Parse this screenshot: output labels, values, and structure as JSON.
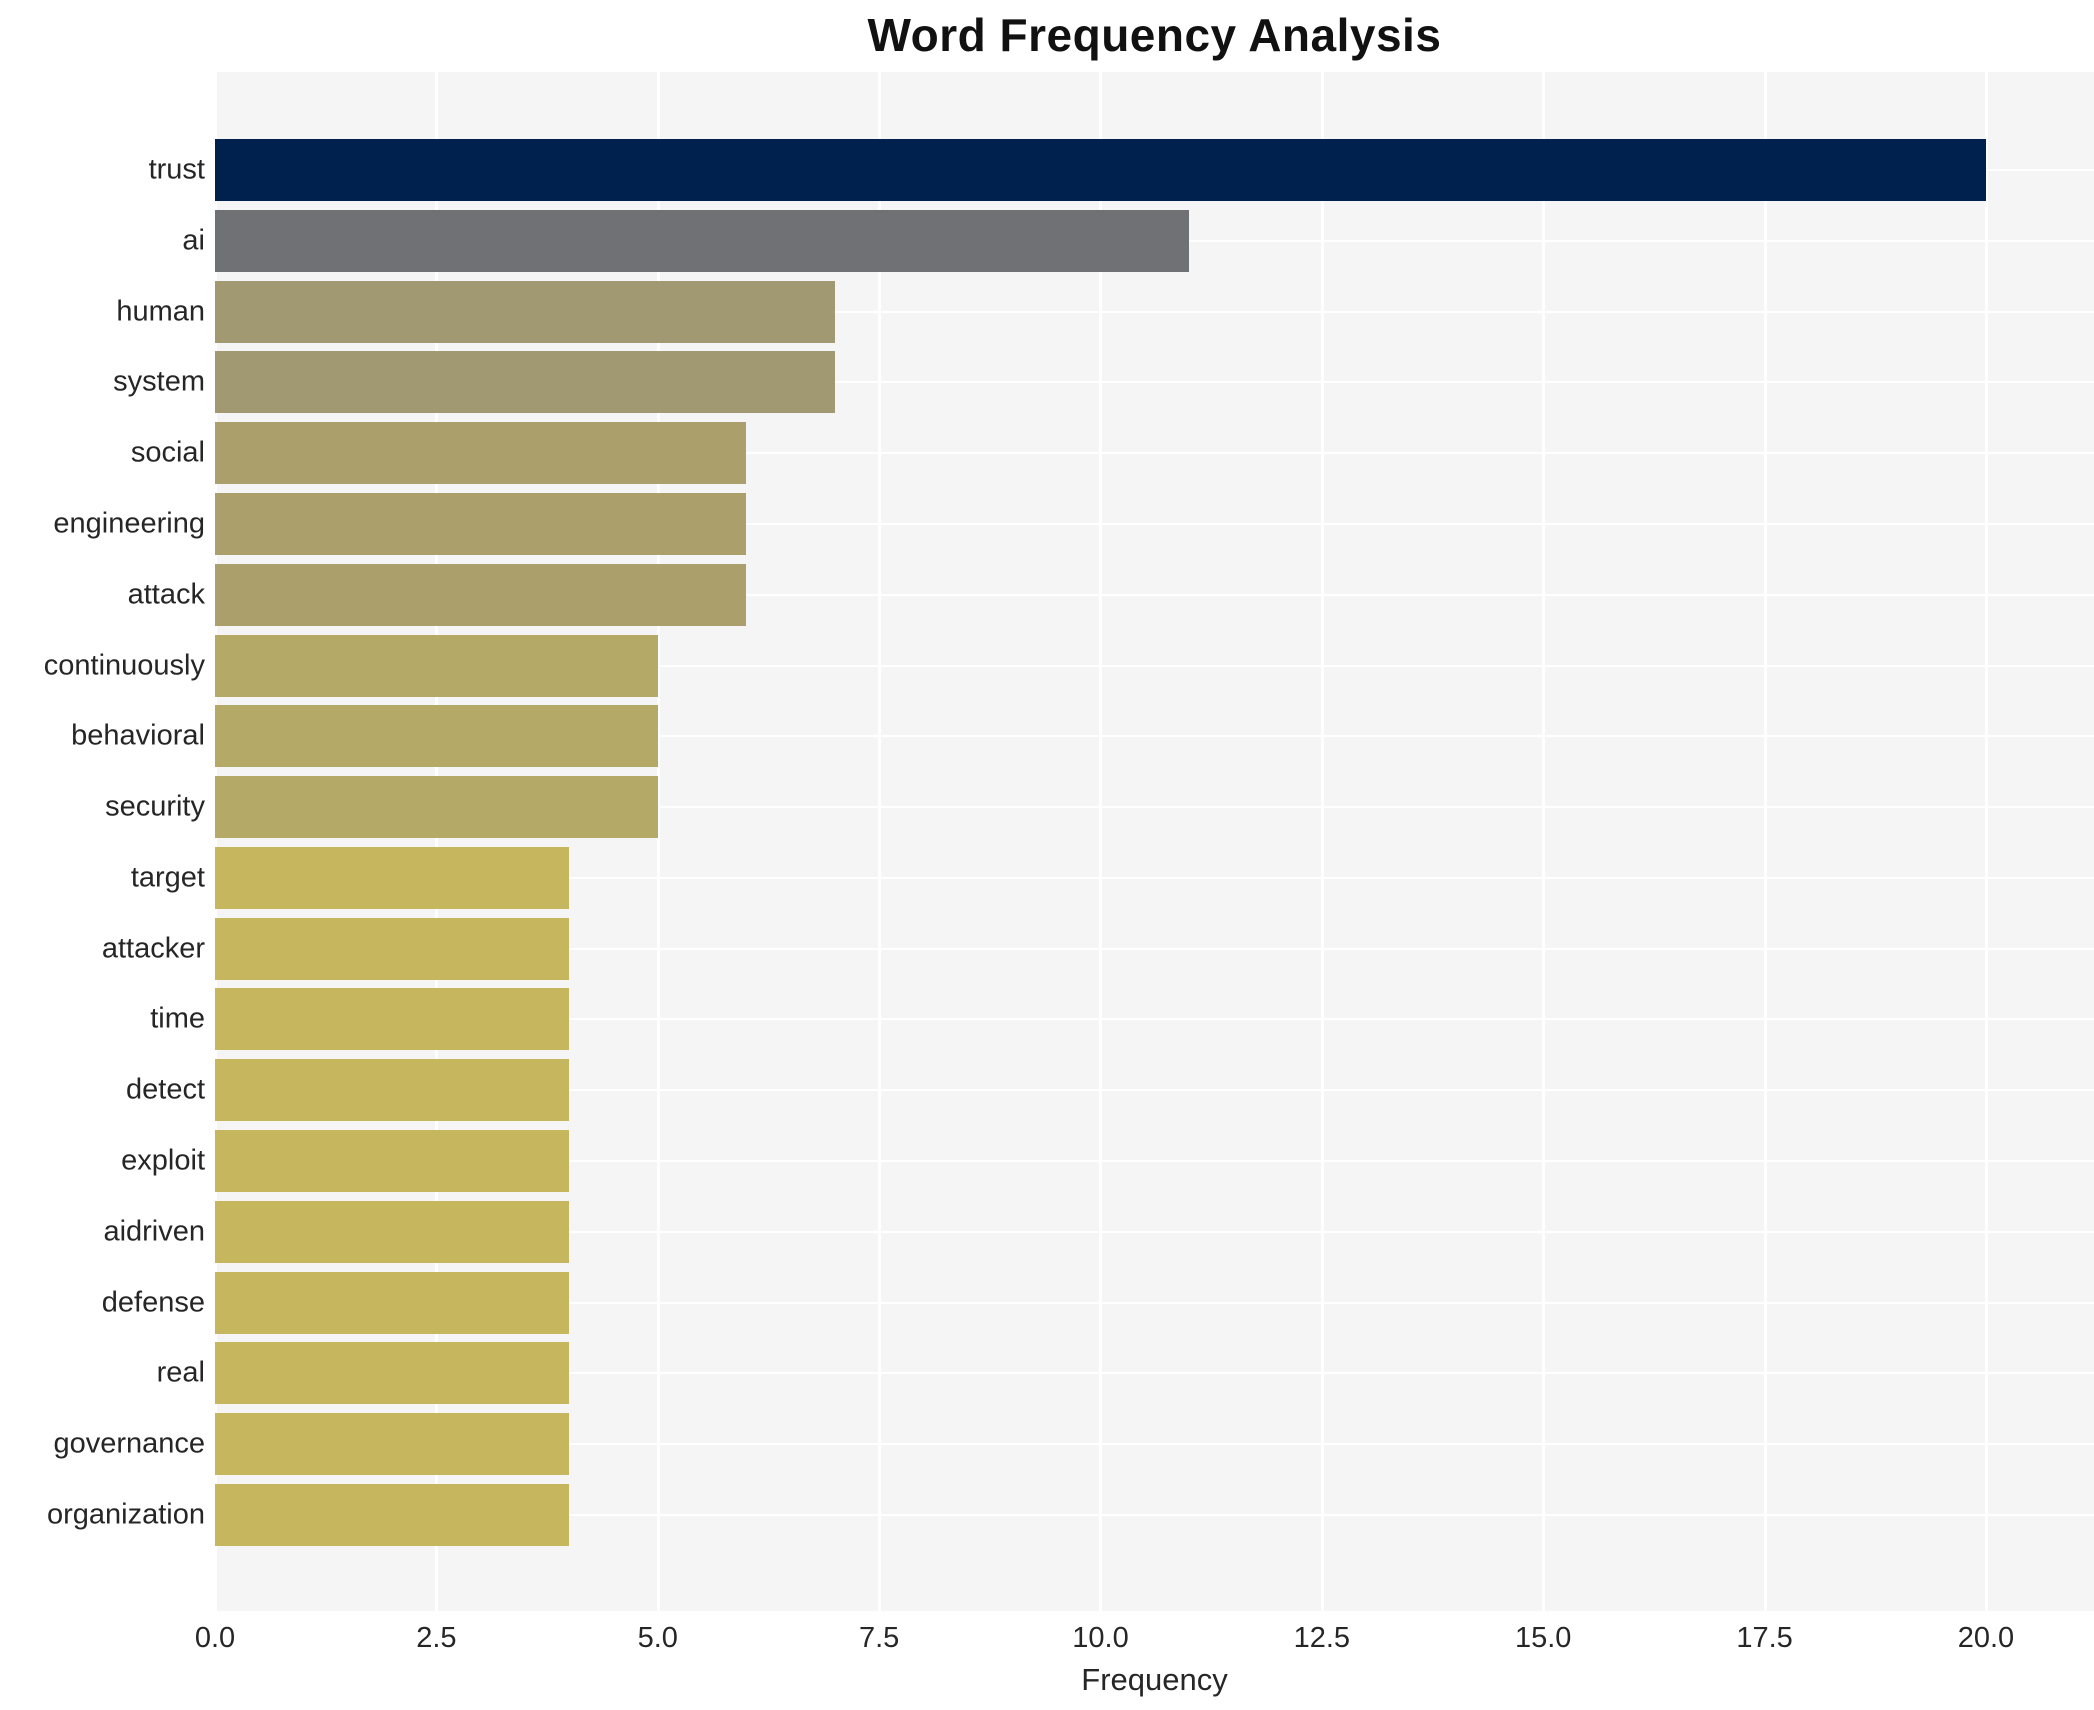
{
  "chart_data": {
    "type": "bar",
    "orientation": "horizontal",
    "title": "Word Frequency Analysis",
    "xlabel": "Frequency",
    "ylabel": "",
    "categories": [
      "trust",
      "ai",
      "human",
      "system",
      "social",
      "engineering",
      "attack",
      "continuously",
      "behavioral",
      "security",
      "target",
      "attacker",
      "time",
      "detect",
      "exploit",
      "aidriven",
      "defense",
      "real",
      "governance",
      "organization"
    ],
    "values": [
      20,
      11,
      7,
      7,
      6,
      6,
      6,
      5,
      5,
      5,
      4,
      4,
      4,
      4,
      4,
      4,
      4,
      4,
      4,
      4
    ],
    "bar_colors": [
      "#00204d",
      "#707174",
      "#a19972",
      "#a19972",
      "#ab9f6b",
      "#ab9f6b",
      "#ab9f6b",
      "#b4a966",
      "#b4a966",
      "#b4a966",
      "#c6b65e",
      "#c6b65e",
      "#c6b65e",
      "#c6b65e",
      "#c6b65e",
      "#c6b65e",
      "#c6b65e",
      "#c6b65e",
      "#c6b65e",
      "#c6b65e"
    ],
    "xlim": [
      0.0,
      21.22
    ],
    "xticks": [
      0.0,
      2.5,
      5.0,
      7.5,
      10.0,
      12.5,
      15.0,
      17.5,
      20.0
    ],
    "xtick_labels": [
      "0.0",
      "2.5",
      "5.0",
      "7.5",
      "10.0",
      "12.5",
      "15.0",
      "17.5",
      "20.0"
    ],
    "grid": true,
    "legend": false,
    "plot_background": "#f5f5f6",
    "grid_color": "#ffffff",
    "text_color": "#262626"
  }
}
